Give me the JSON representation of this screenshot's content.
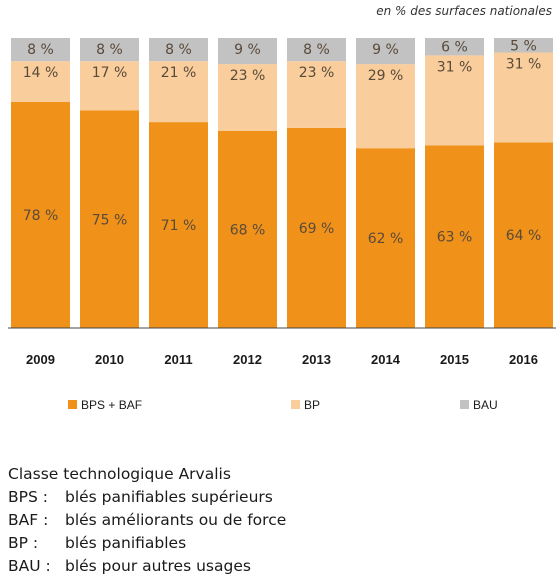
{
  "chart_data": {
    "type": "bar",
    "stacked": true,
    "unit_note": "en % des surfaces nationales",
    "categories": [
      "2009",
      "2010",
      "2011",
      "2012",
      "2013",
      "2014",
      "2015",
      "2016"
    ],
    "series": [
      {
        "name": "BPS + BAF",
        "color": "#f0921a",
        "values": [
          78,
          75,
          71,
          68,
          69,
          62,
          63,
          64
        ],
        "labels": [
          "78 %",
          "75 %",
          "71 %",
          "68 %",
          "69 %",
          "62 %",
          "63 %",
          "64 %"
        ]
      },
      {
        "name": "BP",
        "color": "#f9cd9c",
        "values": [
          14,
          17,
          21,
          23,
          23,
          29,
          31,
          31
        ],
        "labels": [
          "14 %",
          "17 %",
          "21 %",
          "23 %",
          "23 %",
          "29 %",
          "31 %",
          "31 %"
        ]
      },
      {
        "name": "BAU",
        "color": "#c2c2c2",
        "values": [
          8,
          8,
          8,
          9,
          8,
          9,
          6,
          5
        ],
        "labels": [
          "8 %",
          "8 %",
          "8 %",
          "9 %",
          "8 %",
          "9 %",
          "6 %",
          "5 %"
        ]
      }
    ],
    "ylim": [
      0,
      100
    ],
    "legend_position": "bottom"
  },
  "glossary": {
    "title": "Classe technologique Arvalis",
    "items": [
      {
        "abbr": "BPS :",
        "desc": "blés panifiables supérieurs"
      },
      {
        "abbr": "BAF :",
        "desc": "blés améliorants ou de force"
      },
      {
        "abbr": "BP :",
        "desc": "blés panifiables"
      },
      {
        "abbr": "BAU :",
        "desc": "blés pour autres usages"
      }
    ]
  }
}
